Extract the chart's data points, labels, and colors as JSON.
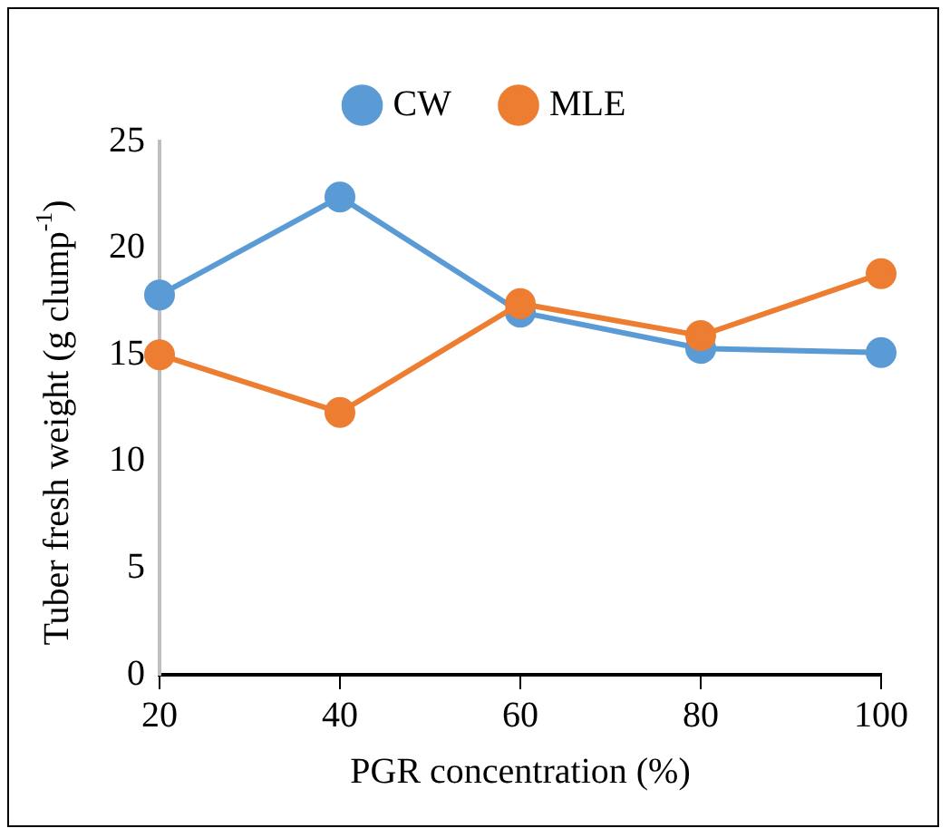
{
  "chart_data": {
    "type": "line",
    "xlabel": "PGR concentration (%)",
    "ylabel": "Tuber fresh weight (g clump$^{-1}$)",
    "categories": [
      "20",
      "40",
      "60",
      "80",
      "100"
    ],
    "series": [
      {
        "name": "CW",
        "color": "#5b9bd5",
        "values": [
          17.8,
          22.4,
          17.0,
          15.3,
          15.1
        ]
      },
      {
        "name": "MLE",
        "color": "#ed7d31",
        "values": [
          15.0,
          12.3,
          17.4,
          15.9,
          18.8
        ]
      }
    ],
    "ylim": [
      0,
      25
    ],
    "yticks": [
      0,
      5,
      10,
      15,
      20,
      25
    ],
    "grid": false,
    "legend": "top",
    "marker": "circle",
    "line_style": "solid"
  }
}
